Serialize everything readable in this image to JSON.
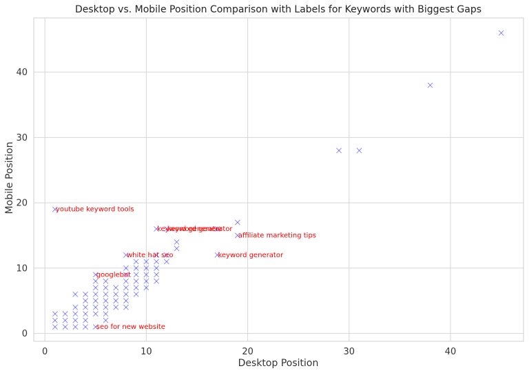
{
  "chart_data": {
    "type": "scatter",
    "title": "Desktop vs. Mobile Position Comparison with Labels for Keywords with Biggest Gaps",
    "xlabel": "Desktop Position",
    "ylabel": "Mobile Position",
    "xlim": [
      -1.1,
      47.2
    ],
    "ylim": [
      -1.2,
      48.3
    ],
    "xticks": [
      0,
      10,
      20,
      30,
      40
    ],
    "yticks": [
      0,
      10,
      20,
      30,
      40
    ],
    "grid": true,
    "marker": "x",
    "marker_color": "#0000ff",
    "label_color": "#ff0000",
    "points": [
      [
        1,
        1
      ],
      [
        1,
        2
      ],
      [
        1,
        3
      ],
      [
        2,
        1
      ],
      [
        2,
        2
      ],
      [
        2,
        3
      ],
      [
        3,
        1
      ],
      [
        3,
        2
      ],
      [
        3,
        3
      ],
      [
        3,
        4
      ],
      [
        3,
        6
      ],
      [
        4,
        1
      ],
      [
        4,
        2
      ],
      [
        4,
        3
      ],
      [
        4,
        4
      ],
      [
        4,
        5
      ],
      [
        4,
        6
      ],
      [
        5,
        1
      ],
      [
        5,
        3
      ],
      [
        5,
        4
      ],
      [
        5,
        5
      ],
      [
        5,
        6
      ],
      [
        5,
        7
      ],
      [
        5,
        8
      ],
      [
        5,
        9
      ],
      [
        6,
        2
      ],
      [
        6,
        3
      ],
      [
        6,
        4
      ],
      [
        6,
        5
      ],
      [
        6,
        6
      ],
      [
        6,
        7
      ],
      [
        6,
        8
      ],
      [
        7,
        4
      ],
      [
        7,
        5
      ],
      [
        7,
        6
      ],
      [
        7,
        7
      ],
      [
        8,
        4
      ],
      [
        8,
        5
      ],
      [
        8,
        6
      ],
      [
        8,
        7
      ],
      [
        8,
        8
      ],
      [
        8,
        9
      ],
      [
        8,
        10
      ],
      [
        8,
        12
      ],
      [
        9,
        6
      ],
      [
        9,
        7
      ],
      [
        9,
        8
      ],
      [
        9,
        9
      ],
      [
        9,
        10
      ],
      [
        9,
        11
      ],
      [
        10,
        7
      ],
      [
        10,
        8
      ],
      [
        10,
        9
      ],
      [
        10,
        10
      ],
      [
        10,
        11
      ],
      [
        11,
        8
      ],
      [
        11,
        9
      ],
      [
        11,
        10
      ],
      [
        11,
        11
      ],
      [
        11,
        12
      ],
      [
        11,
        16
      ],
      [
        12,
        11
      ],
      [
        12,
        12
      ],
      [
        12,
        16
      ],
      [
        13,
        13
      ],
      [
        13,
        14
      ],
      [
        17,
        12
      ],
      [
        17,
        16
      ],
      [
        19,
        15
      ],
      [
        19,
        17
      ],
      [
        29,
        28
      ],
      [
        31,
        28
      ],
      [
        38,
        38
      ],
      [
        45,
        46
      ],
      [
        1,
        19
      ]
    ],
    "annotations": [
      {
        "text": "youtube keyword tools",
        "x": 1,
        "y": 19
      },
      {
        "text": "keyword generator",
        "x": 11,
        "y": 16
      },
      {
        "text": "keyword generator",
        "x": 12,
        "y": 16
      },
      {
        "text": "affiliate marketing tips",
        "x": 19,
        "y": 15
      },
      {
        "text": "white hat seo",
        "x": 8,
        "y": 12
      },
      {
        "text": "keyword generator",
        "x": 17,
        "y": 12
      },
      {
        "text": "googlebot",
        "x": 5,
        "y": 9
      },
      {
        "text": "seo for new website",
        "x": 5,
        "y": 1
      }
    ]
  }
}
